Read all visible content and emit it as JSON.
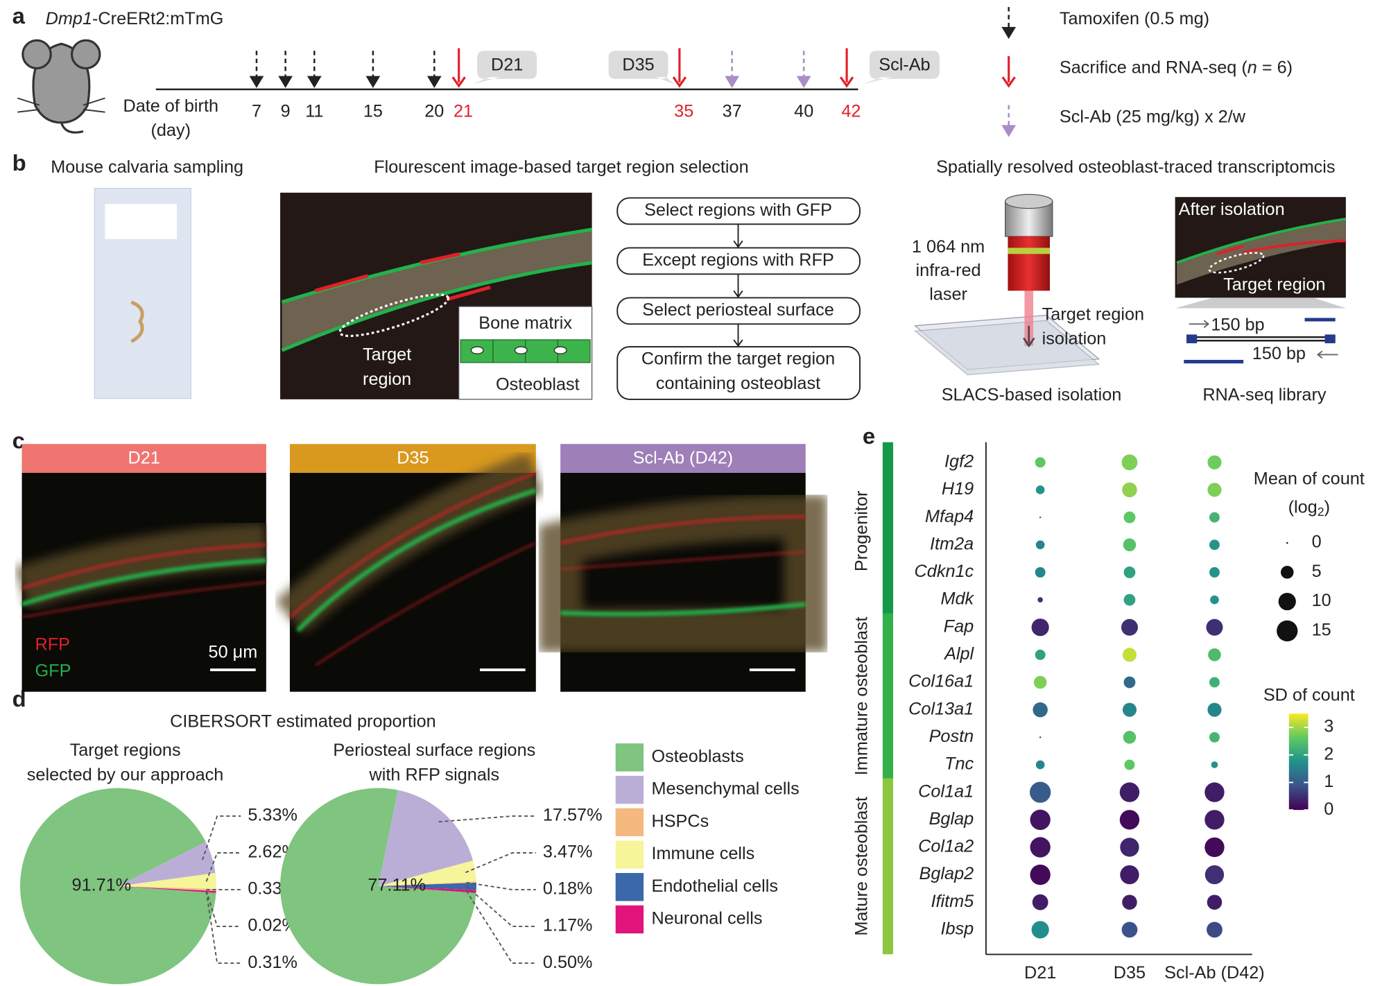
{
  "panel_labels": [
    "a",
    "b",
    "c",
    "d",
    "e"
  ],
  "timeline": {
    "strain": {
      "gene": "Dmp1",
      "rest": "-CreERt2:mTmG"
    },
    "axis_label": [
      "Date of birth",
      "(day)"
    ],
    "callouts": [
      "D21",
      "D35",
      "Scl-Ab"
    ],
    "legend": [
      {
        "label": [
          "Tamoxifen (0.5 mg)"
        ],
        "color": "#222222",
        "day_color": "#222222",
        "style": "dashed",
        "days": [
          7,
          9,
          11,
          15,
          20
        ]
      },
      {
        "label": [
          "Sacrifice and RNA-seq (",
          "n",
          " = 6)"
        ],
        "color": "#e0202a",
        "day_color": "#e0202a",
        "style": "solid",
        "days": [
          21,
          35,
          42
        ]
      },
      {
        "label": [
          "Scl-Ab (25 mg/kg) x 2/w"
        ],
        "color": "#a98cc8",
        "day_color": "#222222",
        "style": "dashed",
        "days": [
          37,
          40
        ]
      }
    ]
  },
  "b": {
    "titles": [
      "Mouse calvaria sampling",
      "Flourescent image-based target region selection",
      "Spatially resolved osteoblast-traced transcriptomcis"
    ],
    "target": [
      "Target",
      "region"
    ],
    "bone": "Bone matrix",
    "osteoblast": "Osteoblast",
    "steps": [
      [
        "Select regions with GFP"
      ],
      [
        "Except regions with RFP"
      ],
      [
        "Select periosteal surface"
      ],
      [
        "Confirm the target region",
        "containing osteoblast"
      ]
    ],
    "laser": [
      "1 064 nm",
      "infra-red",
      "laser"
    ],
    "isolation": [
      "Target region",
      "isolation"
    ],
    "after": "After isolation",
    "target_region": "Target region",
    "bp": [
      "150 bp",
      "150 bp"
    ],
    "captions": [
      "SLACS-based isolation",
      "RNA-seq library"
    ]
  },
  "c": {
    "headers": [
      {
        "label": "D21",
        "color": "#f07470"
      },
      {
        "label": "D35",
        "color": "#d9991f"
      },
      {
        "label": "Scl-Ab (D42)",
        "color": "#9e7fb8"
      }
    ],
    "channels": [
      {
        "label": "RFP",
        "color": "#e0202a"
      },
      {
        "label": "GFP",
        "color": "#22b24c"
      }
    ],
    "scale": "50 μm"
  },
  "d": {
    "title": "CIBERSORT estimated proportion",
    "categories": [
      {
        "name": "Osteoblasts",
        "color": "#7fc47f"
      },
      {
        "name": "Mesenchymal cells",
        "color": "#bbaed6"
      },
      {
        "name": "HSPCs",
        "color": "#f5b87f"
      },
      {
        "name": "Immune cells",
        "color": "#f6f59a"
      },
      {
        "name": "Endothelial cells",
        "color": "#3a68a8"
      },
      {
        "name": "Neuronal cells",
        "color": "#e0147a"
      }
    ],
    "pies": [
      {
        "title": [
          "Target regions",
          "selected by our approach"
        ],
        "values": [
          91.71,
          5.33,
          0.33,
          2.62,
          0.02,
          0.31
        ],
        "value_labels": [
          "91.71%",
          "5.33%",
          "0.33%",
          "2.62%",
          "0.02%",
          "0.31%"
        ]
      },
      {
        "title": [
          "Periosteal surface regions",
          "with RFP signals"
        ],
        "values": [
          77.11,
          17.57,
          0.18,
          3.47,
          1.17,
          0.5
        ],
        "value_labels": [
          "77.11%",
          "17.57%",
          "0.18%",
          "3.47%",
          "1.17%",
          "0.50%"
        ]
      }
    ]
  },
  "e": {
    "conditions": [
      "D21",
      "D35",
      "Scl-Ab (D42)"
    ],
    "groups": [
      {
        "name": "Progenitor",
        "color": "#14994a",
        "genes": [
          "Igf2",
          "H19",
          "Mfap4",
          "Itm2a",
          "Cdkn1c",
          "Mdk"
        ],
        "mean": [
          [
            3,
            8,
            6
          ],
          [
            2,
            7,
            6
          ],
          [
            0,
            4,
            3
          ],
          [
            2,
            5,
            3
          ],
          [
            3,
            4,
            3
          ],
          [
            0.5,
            4,
            2
          ]
        ],
        "sd": [
          [
            2.6,
            2.8,
            2.7
          ],
          [
            1.8,
            2.9,
            2.8
          ],
          [
            1,
            2.6,
            2.3
          ],
          [
            1.6,
            2.5,
            1.8
          ],
          [
            1.6,
            2,
            1.8
          ],
          [
            0.5,
            2,
            1.8
          ]
        ]
      },
      {
        "name": "Immature osteoblast",
        "color": "#34b04a",
        "genes": [
          "Fap",
          "Alpl",
          "Col16a1",
          "Col13a1",
          "Postn",
          "Tnc"
        ],
        "mean": [
          [
            10,
            9,
            9
          ],
          [
            3,
            6,
            5
          ],
          [
            5,
            4,
            3
          ],
          [
            7,
            6,
            6
          ],
          [
            0,
            5,
            3
          ],
          [
            2,
            3,
            1
          ]
        ],
        "sd": [
          [
            0.4,
            0.5,
            0.5
          ],
          [
            2,
            3.2,
            2.4
          ],
          [
            2.8,
            1.2,
            2.2
          ],
          [
            1.2,
            1.6,
            1.6
          ],
          [
            1,
            2.5,
            2.3
          ],
          [
            1.6,
            2.6,
            1.8
          ]
        ]
      },
      {
        "name": "Mature osteoblast",
        "color": "#8dc63f",
        "genes": [
          "Col1a1",
          "Bglap",
          "Col1a2",
          "Bglap2",
          "Ifitm5",
          "Ibsp"
        ],
        "mean": [
          [
            15,
            13,
            13
          ],
          [
            14,
            13,
            13
          ],
          [
            14,
            12,
            13
          ],
          [
            14,
            12,
            12
          ],
          [
            8,
            7,
            7
          ],
          [
            10,
            8,
            8
          ]
        ],
        "sd": [
          [
            1,
            0.3,
            0.3
          ],
          [
            0.2,
            0.1,
            0.3
          ],
          [
            0.2,
            0.4,
            0.1
          ],
          [
            0.1,
            0.3,
            0.5
          ],
          [
            0.3,
            0.3,
            0.3
          ],
          [
            1.7,
            0.9,
            0.8
          ]
        ]
      }
    ],
    "size_legend": {
      "title": [
        "Mean of count",
        "(log",
        "2",
        ")"
      ],
      "ticks": [
        0,
        5,
        10,
        15
      ],
      "lim": [
        0,
        15
      ]
    },
    "color_legend": {
      "title": "SD of count",
      "ticks": [
        0,
        1,
        2,
        3
      ],
      "lim": [
        0,
        3.5
      ],
      "colormap": "viridis"
    }
  }
}
